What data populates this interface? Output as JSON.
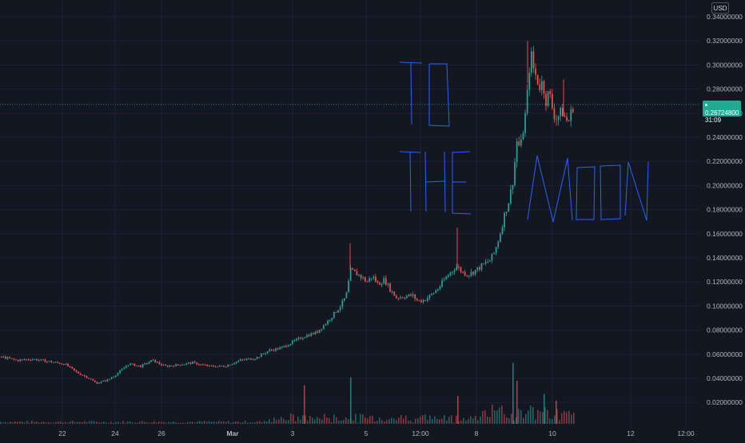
{
  "currency": "USD",
  "last_price_label": "0.26724800",
  "countdown": "31:09",
  "annotation": {
    "line1": "TO",
    "line2": "THE",
    "line3": "MOON"
  },
  "colors": {
    "background": "#131722",
    "up": "#26a69a",
    "down": "#ef5350",
    "grid": "#1f2330",
    "price_line": "#22ab94",
    "drawing": "#2962ff"
  },
  "chart_data": {
    "type": "candlestick",
    "y_axis": {
      "range": [
        0.0,
        0.345
      ],
      "ticks": [
        "0.34000000",
        "0.32000000",
        "0.30000000",
        "0.28000000",
        "0.26000000",
        "0.24000000",
        "0.22000000",
        "0.20000000",
        "0.18000000",
        "0.16000000",
        "0.14000000",
        "0.12000000",
        "0.10000000",
        "0.08000000",
        "0.06000000",
        "0.04000000",
        "0.02000000"
      ],
      "tick_values": [
        0.34,
        0.32,
        0.3,
        0.28,
        0.26,
        0.24,
        0.22,
        0.2,
        0.18,
        0.16,
        0.14,
        0.12,
        0.1,
        0.08,
        0.06,
        0.04,
        0.02
      ]
    },
    "x_axis": {
      "ticks": [
        "22",
        "24",
        "26",
        "Mar",
        "3",
        "5",
        "12:00",
        "8",
        "10",
        "12",
        "12:00"
      ]
    },
    "last_price": 0.267248,
    "price_path": [
      [
        0,
        0.058
      ],
      [
        20,
        0.055
      ],
      [
        40,
        0.056
      ],
      [
        60,
        0.054
      ],
      [
        80,
        0.052
      ],
      [
        95,
        0.045
      ],
      [
        108,
        0.041
      ],
      [
        120,
        0.036
      ],
      [
        135,
        0.039
      ],
      [
        148,
        0.045
      ],
      [
        160,
        0.052
      ],
      [
        175,
        0.05
      ],
      [
        190,
        0.055
      ],
      [
        205,
        0.05
      ],
      [
        220,
        0.051
      ],
      [
        240,
        0.053
      ],
      [
        260,
        0.05
      ],
      [
        280,
        0.05
      ],
      [
        300,
        0.055
      ],
      [
        320,
        0.057
      ],
      [
        335,
        0.063
      ],
      [
        350,
        0.065
      ],
      [
        365,
        0.07
      ],
      [
        380,
        0.075
      ],
      [
        395,
        0.078
      ],
      [
        410,
        0.088
      ],
      [
        425,
        0.1
      ],
      [
        432,
        0.108
      ],
      [
        438,
        0.13
      ],
      [
        442,
        0.128
      ],
      [
        450,
        0.125
      ],
      [
        458,
        0.12
      ],
      [
        465,
        0.125
      ],
      [
        472,
        0.118
      ],
      [
        480,
        0.122
      ],
      [
        488,
        0.113
      ],
      [
        495,
        0.107
      ],
      [
        505,
        0.108
      ],
      [
        515,
        0.109
      ],
      [
        522,
        0.104
      ],
      [
        530,
        0.105
      ],
      [
        540,
        0.11
      ],
      [
        548,
        0.115
      ],
      [
        555,
        0.122
      ],
      [
        563,
        0.128
      ],
      [
        570,
        0.133
      ],
      [
        578,
        0.128
      ],
      [
        585,
        0.126
      ],
      [
        595,
        0.13
      ],
      [
        605,
        0.135
      ],
      [
        612,
        0.138
      ],
      [
        618,
        0.145
      ],
      [
        624,
        0.158
      ],
      [
        630,
        0.175
      ],
      [
        636,
        0.188
      ],
      [
        641,
        0.205
      ],
      [
        646,
        0.238
      ],
      [
        650,
        0.23
      ],
      [
        654,
        0.248
      ],
      [
        657,
        0.262
      ],
      [
        660,
        0.285
      ],
      [
        663,
        0.312
      ],
      [
        666,
        0.298
      ],
      [
        670,
        0.29
      ],
      [
        674,
        0.282
      ],
      [
        678,
        0.286
      ],
      [
        682,
        0.27
      ],
      [
        686,
        0.278
      ],
      [
        690,
        0.265
      ],
      [
        694,
        0.255
      ],
      [
        698,
        0.258
      ],
      [
        702,
        0.262
      ],
      [
        706,
        0.256
      ],
      [
        710,
        0.252
      ],
      [
        714,
        0.262
      ],
      [
        717,
        0.267
      ]
    ],
    "spikes_high": [
      [
        438,
        0.152
      ],
      [
        572,
        0.165
      ],
      [
        660,
        0.32
      ],
      [
        705,
        0.288
      ]
    ],
    "volume_spikes": [
      [
        380,
        0.058
      ],
      [
        438,
        0.07
      ],
      [
        572,
        0.042
      ],
      [
        641,
        0.092
      ],
      [
        646,
        0.065
      ],
      [
        680,
        0.045
      ],
      [
        695,
        0.035
      ]
    ]
  }
}
